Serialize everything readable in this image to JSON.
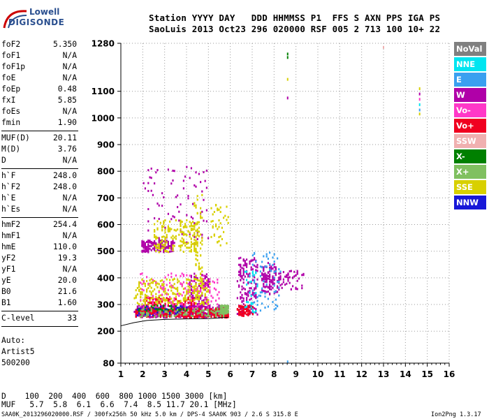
{
  "logo": {
    "line1": "Lowell",
    "line2": "DIGISONDE"
  },
  "header": {
    "row1": "Station YYYY DAY   DDD HHMMSS P1  FFS S AXN PPS IGA PS",
    "row2": "SaoLuis 2013 Oct23 296 020000 RSF 005 2 713 100 10+ 22"
  },
  "params": [
    {
      "label": "foF2",
      "value": "5.350"
    },
    {
      "label": "foF1",
      "value": "N/A"
    },
    {
      "label": "foF1p",
      "value": "N/A"
    },
    {
      "label": "foE",
      "value": "N/A"
    },
    {
      "label": "foEp",
      "value": "0.48"
    },
    {
      "label": "fxI",
      "value": "5.85"
    },
    {
      "label": "foEs",
      "value": "N/A"
    },
    {
      "label": "fmin",
      "value": "1.90"
    },
    {
      "label": "MUF(D)",
      "value": "20.11"
    },
    {
      "label": "M(D)",
      "value": "3.76"
    },
    {
      "label": "D",
      "value": "N/A"
    },
    {
      "label": "h`F",
      "value": "248.0"
    },
    {
      "label": "h`F2",
      "value": "248.0"
    },
    {
      "label": "h`E",
      "value": "N/A"
    },
    {
      "label": "h`Es",
      "value": "N/A"
    },
    {
      "label": "hmF2",
      "value": "254.4"
    },
    {
      "label": "hmF1",
      "value": "N/A"
    },
    {
      "label": "hmE",
      "value": "110.0"
    },
    {
      "label": "yF2",
      "value": "19.3"
    },
    {
      "label": "yF1",
      "value": "N/A"
    },
    {
      "label": "yE",
      "value": "20.0"
    },
    {
      "label": "B0",
      "value": "21.6"
    },
    {
      "label": "B1",
      "value": "1.60"
    },
    {
      "label": "C-level",
      "value": "33"
    }
  ],
  "auto": [
    "Auto:",
    "Artist5",
    "500200"
  ],
  "legend": [
    {
      "label": "NoVal",
      "color": "#808080"
    },
    {
      "label": "NNE",
      "color": "#00e5f0"
    },
    {
      "label": "E",
      "color": "#3aa0f0"
    },
    {
      "label": "W",
      "color": "#b000a8"
    },
    {
      "label": "Vo-",
      "color": "#ff38c8"
    },
    {
      "label": "Vo+",
      "color": "#f00020"
    },
    {
      "label": "SSW",
      "color": "#f0b0b0"
    },
    {
      "label": "X-",
      "color": "#008000"
    },
    {
      "label": "X+",
      "color": "#80c060"
    },
    {
      "label": "SSE",
      "color": "#d8d000"
    },
    {
      "label": "NNW",
      "color": "#1818d8"
    }
  ],
  "bottom": {
    "d_row": "D    100  200  400  600  800 1000 1500 3000 [km]",
    "muf_row": "MUF   5.7  5.8  6.1  6.6  7.4  8.5 11.7 20.1 [MHz]",
    "footer_left": "SAA0K_2013296020000.RSF / 300fx256h 50 kHz 5.0 km / DPS-4 SAA0K 903 / 2.6 S 315.8 E",
    "footer_right": "Ion2Png 1.3.17"
  },
  "chart_data": {
    "type": "scatter",
    "title": "",
    "xlabel": "",
    "ylabel": "",
    "xlim": [
      1,
      16
    ],
    "ylim": [
      80,
      1280
    ],
    "x_ticks": [
      "1",
      "2",
      "3",
      "4",
      "5",
      "6",
      "7",
      "8",
      "9",
      "10",
      "11",
      "12",
      "13",
      "14",
      "15",
      "16"
    ],
    "y_ticks": [
      "80",
      "200",
      "300",
      "400",
      "500",
      "600",
      "700",
      "800",
      "900",
      "1000",
      "1100",
      "1280"
    ],
    "grid": true,
    "legend_position": "right",
    "series": [
      {
        "name": "W",
        "color": "#b000a8",
        "clusters": [
          {
            "x": [
              1.6,
              5.9
            ],
            "y": [
              255,
              300
            ],
            "n": 420
          },
          {
            "x": [
              1.9,
              3.4
            ],
            "y": [
              500,
              545
            ],
            "n": 160
          },
          {
            "x": [
              4.1,
              5.0
            ],
            "y": [
              260,
              420
            ],
            "n": 150
          },
          {
            "x": [
              6.3,
              7.2
            ],
            "y": [
              265,
              480
            ],
            "n": 170
          },
          {
            "x": [
              7.4,
              8.1
            ],
            "y": [
              340,
              460
            ],
            "n": 110
          },
          {
            "x": [
              8.1,
              9.3
            ],
            "y": [
              360,
              430
            ],
            "n": 60
          },
          {
            "x": [
              2.0,
              5.0
            ],
            "y": [
              520,
              820
            ],
            "n": 90
          }
        ]
      },
      {
        "name": "Vo+",
        "color": "#f00020",
        "clusters": [
          {
            "x": [
              1.6,
              5.9
            ],
            "y": [
              255,
              290
            ],
            "n": 350
          },
          {
            "x": [
              2.0,
              4.4
            ],
            "y": [
              300,
              330
            ],
            "n": 90
          },
          {
            "x": [
              6.3,
              7.0
            ],
            "y": [
              260,
              300
            ],
            "n": 70
          }
        ]
      },
      {
        "name": "SSE",
        "color": "#d8d000",
        "clusters": [
          {
            "x": [
              1.6,
              5.0
            ],
            "y": [
              300,
              400
            ],
            "n": 260
          },
          {
            "x": [
              2.5,
              4.5
            ],
            "y": [
              500,
              620
            ],
            "n": 180
          },
          {
            "x": [
              4.3,
              4.7
            ],
            "y": [
              320,
              720
            ],
            "n": 80
          },
          {
            "x": [
              5.1,
              5.9
            ],
            "y": [
              520,
              680
            ],
            "n": 40
          }
        ]
      },
      {
        "name": "X+",
        "color": "#80c060",
        "clusters": [
          {
            "x": [
              1.8,
              5.9
            ],
            "y": [
              258,
              290
            ],
            "n": 120
          },
          {
            "x": [
              5.5,
              5.9
            ],
            "y": [
              270,
              300
            ],
            "n": 50
          }
        ]
      },
      {
        "name": "Vo-",
        "color": "#ff38c8",
        "clusters": [
          {
            "x": [
              1.8,
              5.5
            ],
            "y": [
              290,
              420
            ],
            "n": 120
          }
        ]
      },
      {
        "name": "E",
        "color": "#3aa0f0",
        "clusters": [
          {
            "x": [
              7.0,
              8.3
            ],
            "y": [
              280,
              500
            ],
            "n": 70
          }
        ]
      },
      {
        "name": "NNE",
        "color": "#00e5f0",
        "clusters": [
          {
            "x": [
              6.6,
              7.2
            ],
            "y": [
              270,
              440
            ],
            "n": 30
          }
        ]
      },
      {
        "name": "NNW",
        "color": "#1818d8",
        "clusters": [
          {
            "x": [
              1.7,
              4.0
            ],
            "y": [
              260,
              300
            ],
            "n": 30
          }
        ]
      },
      {
        "name": "X-",
        "color": "#008000",
        "clusters": [
          {
            "x": [
              1.7,
              4.0
            ],
            "y": [
              280,
              300
            ],
            "n": 30
          }
        ]
      }
    ],
    "isolated_points": [
      {
        "x": 8.62,
        "y": 1245,
        "color": "#008000"
      },
      {
        "x": 8.62,
        "y": 1232,
        "color": "#008000"
      },
      {
        "x": 8.62,
        "y": 1150,
        "color": "#d8d000"
      },
      {
        "x": 8.62,
        "y": 1080,
        "color": "#b000a8"
      },
      {
        "x": 8.62,
        "y": 90,
        "color": "#3aa0f0"
      },
      {
        "x": 13.0,
        "y": 1270,
        "color": "#f0b0b0"
      },
      {
        "x": 14.65,
        "y": 1115,
        "color": "#d8d000"
      },
      {
        "x": 14.65,
        "y": 1095,
        "color": "#b000a8"
      },
      {
        "x": 14.65,
        "y": 1075,
        "color": "#ff38c8"
      },
      {
        "x": 14.65,
        "y": 1055,
        "color": "#00e5f0"
      },
      {
        "x": 14.65,
        "y": 1035,
        "color": "#3aa0f0"
      },
      {
        "x": 14.65,
        "y": 1020,
        "color": "#d8d000"
      }
    ],
    "trace_curve": {
      "x": [
        1.0,
        1.6,
        2.2,
        3.0,
        4.0,
        5.0,
        5.9
      ],
      "y": [
        220,
        232,
        240,
        244,
        246,
        247,
        252
      ]
    }
  }
}
